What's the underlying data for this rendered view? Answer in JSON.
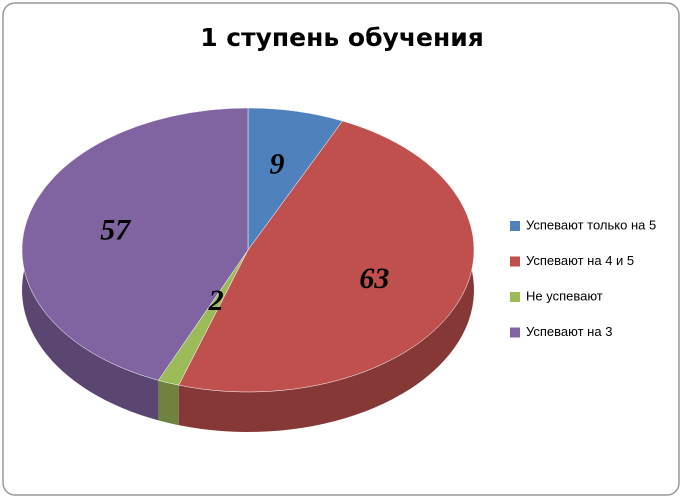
{
  "chart_data": {
    "type": "pie",
    "title": "1 ступень обучения",
    "categories": [
      "Успевают только на 5",
      "Успевают на 4 и 5",
      "Не успевают",
      "Успевают на 3"
    ],
    "values": [
      9,
      63,
      2,
      57
    ],
    "colors": [
      "#4f81bd",
      "#c0504d",
      "#9bbb59",
      "#8064a2"
    ],
    "legend": "right"
  }
}
